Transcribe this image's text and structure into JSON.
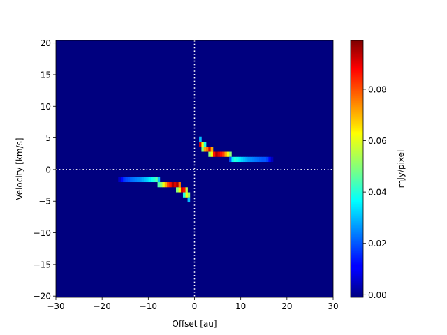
{
  "chart_data": {
    "type": "heatmap",
    "title": "",
    "xlabel": "Offset [au]",
    "ylabel": "Velocity [km/s]",
    "xlim": [
      -30,
      30
    ],
    "ylim": [
      -20.2,
      20.4
    ],
    "xticks": [
      -30,
      -20,
      -10,
      0,
      10,
      20,
      30
    ],
    "yticks": [
      -20,
      -15,
      -10,
      -5,
      0,
      5,
      10,
      15,
      20
    ],
    "xtick_labels": [
      "−30",
      "−20",
      "−10",
      "0",
      "10",
      "20",
      "30"
    ],
    "ytick_labels": [
      "−20",
      "−15",
      "−10",
      "−5",
      "0",
      "5",
      "10",
      "15",
      "20"
    ],
    "reference_lines": [
      {
        "axis": "x",
        "value": 0,
        "style": "dotted",
        "color": "#ffffff"
      },
      {
        "axis": "y",
        "value": 0,
        "style": "dotted",
        "color": "#ffffff"
      }
    ],
    "grid": false,
    "colormap": "jet",
    "background_value": 0.0,
    "colorbar": {
      "label": "mJy/pixel",
      "vmin": -0.001,
      "vmax": 0.099,
      "ticks": [
        0.0,
        0.02,
        0.04,
        0.06,
        0.08
      ],
      "tick_labels": [
        "0.00",
        "0.02",
        "0.04",
        "0.06",
        "0.08"
      ]
    },
    "cell_size": {
      "offset": 0.5,
      "velocity": 0.8
    },
    "cells": [
      {
        "x": 1.25,
        "y": 4.8,
        "v": 0.03
      },
      {
        "x": 1.25,
        "y": 4.0,
        "v": 0.09
      },
      {
        "x": 1.75,
        "y": 4.0,
        "v": 0.06
      },
      {
        "x": 1.75,
        "y": 3.2,
        "v": 0.05
      },
      {
        "x": 2.25,
        "y": 3.2,
        "v": 0.07
      },
      {
        "x": 2.25,
        "y": 4.0,
        "v": 0.04
      },
      {
        "x": 2.75,
        "y": 3.2,
        "v": 0.075
      },
      {
        "x": 3.25,
        "y": 3.2,
        "v": 0.09
      },
      {
        "x": 3.25,
        "y": 2.4,
        "v": 0.05
      },
      {
        "x": 3.75,
        "y": 3.2,
        "v": 0.07
      },
      {
        "x": 3.75,
        "y": 2.4,
        "v": 0.06
      },
      {
        "x": 4.25,
        "y": 2.4,
        "v": 0.085
      },
      {
        "x": 4.75,
        "y": 2.4,
        "v": 0.095
      },
      {
        "x": 5.25,
        "y": 2.4,
        "v": 0.09
      },
      {
        "x": 5.75,
        "y": 2.4,
        "v": 0.085
      },
      {
        "x": 6.25,
        "y": 2.4,
        "v": 0.08
      },
      {
        "x": 6.75,
        "y": 2.4,
        "v": 0.07
      },
      {
        "x": 7.25,
        "y": 2.4,
        "v": 0.06
      },
      {
        "x": 7.75,
        "y": 2.4,
        "v": 0.05
      },
      {
        "x": 7.75,
        "y": 1.6,
        "v": 0.02
      },
      {
        "x": 8.25,
        "y": 1.6,
        "v": 0.035
      },
      {
        "x": 8.75,
        "y": 1.6,
        "v": 0.04
      },
      {
        "x": 9.25,
        "y": 1.6,
        "v": 0.038
      },
      {
        "x": 9.75,
        "y": 1.6,
        "v": 0.035
      },
      {
        "x": 10.25,
        "y": 1.6,
        "v": 0.032
      },
      {
        "x": 10.75,
        "y": 1.6,
        "v": 0.03
      },
      {
        "x": 11.25,
        "y": 1.6,
        "v": 0.028
      },
      {
        "x": 11.75,
        "y": 1.6,
        "v": 0.026
      },
      {
        "x": 12.25,
        "y": 1.6,
        "v": 0.025
      },
      {
        "x": 12.75,
        "y": 1.6,
        "v": 0.024
      },
      {
        "x": 13.25,
        "y": 1.6,
        "v": 0.023
      },
      {
        "x": 13.75,
        "y": 1.6,
        "v": 0.022
      },
      {
        "x": 14.25,
        "y": 1.6,
        "v": 0.021
      },
      {
        "x": 14.75,
        "y": 1.6,
        "v": 0.02
      },
      {
        "x": 15.25,
        "y": 1.6,
        "v": 0.02
      },
      {
        "x": 15.75,
        "y": 1.6,
        "v": 0.018
      },
      {
        "x": 16.25,
        "y": 1.6,
        "v": 0.012
      },
      {
        "x": 16.75,
        "y": 1.6,
        "v": 0.005
      },
      {
        "x": -1.25,
        "y": -4.8,
        "v": 0.03
      },
      {
        "x": -1.25,
        "y": -4.0,
        "v": 0.05
      },
      {
        "x": -1.75,
        "y": -4.0,
        "v": 0.06
      },
      {
        "x": -1.75,
        "y": -3.2,
        "v": 0.055
      },
      {
        "x": -2.25,
        "y": -3.2,
        "v": 0.085
      },
      {
        "x": -2.25,
        "y": -4.0,
        "v": 0.04
      },
      {
        "x": -2.75,
        "y": -3.2,
        "v": 0.09
      },
      {
        "x": -3.25,
        "y": -3.2,
        "v": 0.06
      },
      {
        "x": -3.25,
        "y": -2.4,
        "v": 0.075
      },
      {
        "x": -3.75,
        "y": -2.4,
        "v": 0.095
      },
      {
        "x": -3.75,
        "y": -3.2,
        "v": 0.05
      },
      {
        "x": -4.25,
        "y": -2.4,
        "v": 0.09
      },
      {
        "x": -4.75,
        "y": -2.4,
        "v": 0.095
      },
      {
        "x": -5.25,
        "y": -2.4,
        "v": 0.085
      },
      {
        "x": -5.75,
        "y": -2.4,
        "v": 0.08
      },
      {
        "x": -6.25,
        "y": -2.4,
        "v": 0.07
      },
      {
        "x": -6.75,
        "y": -2.4,
        "v": 0.06
      },
      {
        "x": -7.25,
        "y": -2.4,
        "v": 0.05
      },
      {
        "x": -7.75,
        "y": -2.4,
        "v": 0.045
      },
      {
        "x": -7.75,
        "y": -1.6,
        "v": 0.03
      },
      {
        "x": -8.25,
        "y": -1.6,
        "v": 0.045
      },
      {
        "x": -8.75,
        "y": -1.6,
        "v": 0.04
      },
      {
        "x": -9.25,
        "y": -1.6,
        "v": 0.038
      },
      {
        "x": -9.75,
        "y": -1.6,
        "v": 0.035
      },
      {
        "x": -10.25,
        "y": -1.6,
        "v": 0.032
      },
      {
        "x": -10.75,
        "y": -1.6,
        "v": 0.03
      },
      {
        "x": -11.25,
        "y": -1.6,
        "v": 0.028
      },
      {
        "x": -11.75,
        "y": -1.6,
        "v": 0.026
      },
      {
        "x": -12.25,
        "y": -1.6,
        "v": 0.025
      },
      {
        "x": -12.75,
        "y": -1.6,
        "v": 0.024
      },
      {
        "x": -13.25,
        "y": -1.6,
        "v": 0.023
      },
      {
        "x": -13.75,
        "y": -1.6,
        "v": 0.022
      },
      {
        "x": -14.25,
        "y": -1.6,
        "v": 0.02
      },
      {
        "x": -14.75,
        "y": -1.6,
        "v": 0.019
      },
      {
        "x": -15.25,
        "y": -1.6,
        "v": 0.017
      },
      {
        "x": -15.75,
        "y": -1.6,
        "v": 0.012
      },
      {
        "x": -16.25,
        "y": -1.6,
        "v": 0.006
      }
    ]
  }
}
